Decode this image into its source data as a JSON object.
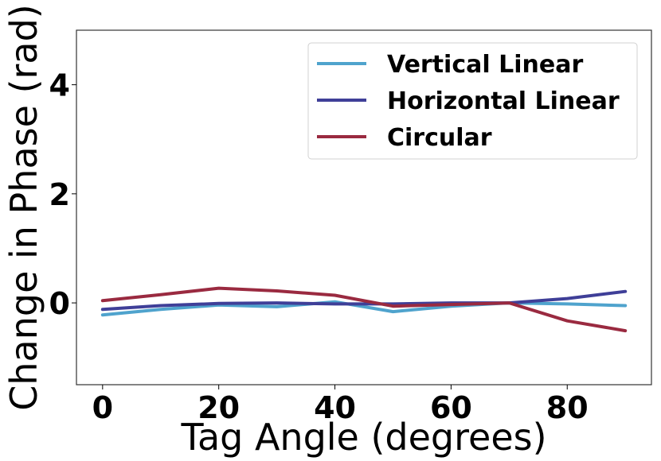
{
  "chart_data": {
    "type": "line",
    "title": "",
    "xlabel": "Tag Angle (degrees)",
    "ylabel": "Change in Phase (rad)",
    "xlim": [
      -4.5,
      94.5
    ],
    "ylim": [
      -1.5,
      5.0
    ],
    "xticks": [
      0,
      20,
      40,
      60,
      80
    ],
    "yticks": [
      0,
      2,
      4
    ],
    "grid": false,
    "legend_position": "upper-right",
    "x": [
      0,
      10,
      20,
      30,
      40,
      50,
      60,
      70,
      80,
      90
    ],
    "series": [
      {
        "name": "Vertical Linear",
        "color": "#4fa3cd",
        "values": [
          -0.22,
          -0.12,
          -0.04,
          -0.07,
          0.02,
          -0.16,
          -0.06,
          0.0,
          -0.02,
          -0.05
        ]
      },
      {
        "name": "Horizontal Linear",
        "color": "#3f3f98",
        "values": [
          -0.12,
          -0.05,
          -0.01,
          0.0,
          -0.02,
          -0.02,
          0.0,
          0.0,
          0.08,
          0.21
        ]
      },
      {
        "name": "Circular",
        "color": "#9a2a40",
        "values": [
          0.04,
          0.15,
          0.27,
          0.22,
          0.14,
          -0.06,
          -0.03,
          0.0,
          -0.33,
          -0.51
        ]
      }
    ]
  }
}
